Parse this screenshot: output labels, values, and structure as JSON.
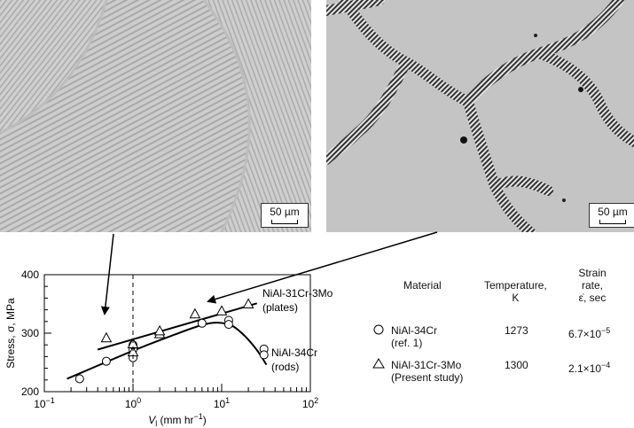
{
  "micrographs": [
    {
      "scale_label": "50 µm",
      "description_icon": "lamellar-micrograph"
    },
    {
      "scale_label": "50 µm",
      "description_icon": "cellular-micrograph"
    }
  ],
  "chart_data": {
    "type": "scatter",
    "xlabel": "V",
    "xlabel_sub": "l",
    "xlabel_unit": " (mm hr",
    "xlabel_exp": "−1",
    "xlabel_close": ")",
    "ylabel": "Stress, σ, MPa",
    "xscale": "log",
    "xlim": [
      0.1,
      100
    ],
    "ylim": [
      200,
      400
    ],
    "x_ticks": [
      {
        "value": 0.1,
        "base": "10",
        "exp": "−1"
      },
      {
        "value": 1,
        "base": "10",
        "exp": "0"
      },
      {
        "value": 10,
        "base": "10",
        "exp": "1"
      },
      {
        "value": 100,
        "base": "10",
        "exp": "2"
      }
    ],
    "y_ticks": [
      "200",
      "300",
      "400"
    ],
    "reference_line_x": 1,
    "series": [
      {
        "name": "NiAl-34Cr",
        "name_line2": "(rods)",
        "marker": "circle",
        "x": [
          0.25,
          0.5,
          1.0,
          1.0,
          1.0,
          6.0,
          12.0,
          12.0,
          30.0,
          30.0
        ],
        "y": [
          222,
          252,
          258,
          272,
          280,
          317,
          322,
          315,
          273,
          263
        ],
        "fit_x": [
          0.18,
          1,
          3,
          6,
          9,
          13,
          18,
          25,
          32
        ],
        "fit_y": [
          222,
          270,
          298,
          314,
          318,
          313,
          296,
          271,
          246
        ]
      },
      {
        "name": "NiAl-31Cr-3Mo",
        "name_line2": "(plates)",
        "marker": "triangle",
        "x": [
          0.5,
          1.0,
          1.0,
          2.0,
          2.0,
          5.0,
          10.0,
          20.0
        ],
        "y": [
          292,
          268,
          282,
          299,
          304,
          333,
          338,
          350
        ],
        "fit_x": [
          0.4,
          25
        ],
        "fit_y": [
          272,
          351
        ]
      }
    ]
  },
  "table": {
    "headers": {
      "material": "Material",
      "temperature": [
        "Temperature,",
        "K"
      ],
      "strain_rate": [
        "Strain",
        "rate,",
        "ε̇, sec"
      ]
    },
    "rows": [
      {
        "marker": "circle",
        "material": [
          "NiAl-34Cr",
          "(ref. 1)"
        ],
        "temperature": "1273",
        "rate_base": "6.7×10",
        "rate_exp": "−5"
      },
      {
        "marker": "triangle",
        "material": [
          "NiAl-31Cr-3Mo",
          "(Present study)"
        ],
        "temperature": "1300",
        "rate_base": "2.1×10",
        "rate_exp": "−4"
      }
    ]
  },
  "colors": {
    "micrograph_left": "#c9c9c9",
    "micrograph_right": "#c6c6c6",
    "dendrite": "#3a3a3a"
  }
}
